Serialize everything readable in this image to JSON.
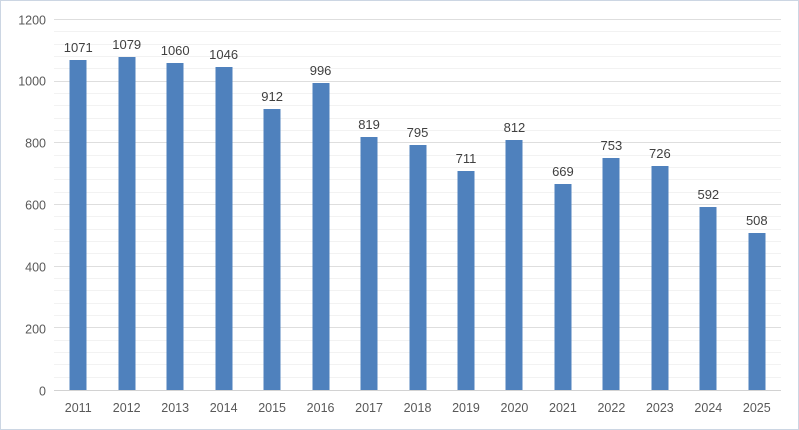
{
  "chart_data": {
    "type": "bar",
    "categories": [
      "2011",
      "2012",
      "2013",
      "2014",
      "2015",
      "2016",
      "2017",
      "2018",
      "2019",
      "2020",
      "2021",
      "2022",
      "2023",
      "2024",
      "2025"
    ],
    "values": [
      1071,
      1079,
      1060,
      1046,
      912,
      996,
      819,
      795,
      711,
      812,
      669,
      753,
      726,
      592,
      508
    ],
    "title": "",
    "xlabel": "",
    "ylabel": "",
    "ylim": [
      0,
      1200
    ],
    "y_major_unit": 200,
    "y_minor_unit": 40,
    "y_tick_labels": [
      "0",
      "200",
      "400",
      "600",
      "800",
      "1000",
      "1200"
    ],
    "legend": "none",
    "grid": "horizontal major and minor gridlines",
    "data_labels": "above bars",
    "colors": {
      "bar": "#4f81bd",
      "axis_label": "#595959",
      "data_label": "#404040",
      "gridline_major": "#dedede",
      "gridline_minor": "#f2f2f2",
      "chart_border": "#ccd6e3"
    }
  }
}
